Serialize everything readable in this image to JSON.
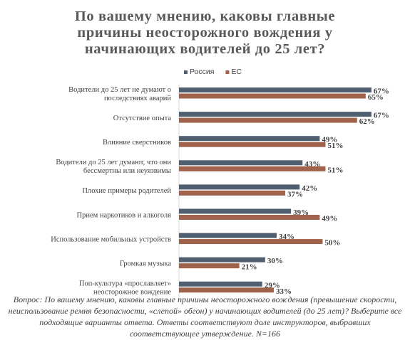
{
  "chart_data": {
    "type": "bar",
    "orientation": "horizontal",
    "title_lines": [
      "По вашему мнению, каковы главные",
      "причины неосторожного вождения у",
      "начинающих водителей до 25 лет?"
    ],
    "categories": [
      [
        "Водители до 25 лет не думают о",
        "последствиях аварий"
      ],
      [
        "Отсутствие опыта"
      ],
      [
        "Влияние сверстников"
      ],
      [
        "Водители до 25 лет думают, что они",
        "бессмертны или неуязвимы"
      ],
      [
        "Плохие примеры родителей"
      ],
      [
        "Прием наркотиков и алкоголя"
      ],
      [
        "Использование  мобильных устройств"
      ],
      [
        "Громкая музыка"
      ],
      [
        "Поп-культура «прославляет»",
        "неосторожное вождение"
      ]
    ],
    "series": [
      {
        "name": "Россия",
        "color": "#4f5f6f",
        "values": [
          67,
          67,
          49,
          43,
          42,
          39,
          34,
          30,
          29
        ]
      },
      {
        "name": "ЕС",
        "color": "#a0624a",
        "values": [
          65,
          62,
          51,
          51,
          37,
          49,
          50,
          21,
          33
        ]
      }
    ],
    "value_suffix": "%",
    "xlim": [
      0,
      70
    ],
    "legend_position": "top",
    "grid": false
  },
  "footnote": [
    "Вопрос: По вашему мнению, каковы главные причины неосторожного вождения (превышение скорости,",
    "неиспользование ремня безопасности, «слепой» обгон) у начинающих водителей (до 25 лет)? Выберите все",
    "подходящие варианты ответа. Ответы соответствуют доле инструкторов, выбравших",
    "соответствующее утверждение. N=166"
  ]
}
